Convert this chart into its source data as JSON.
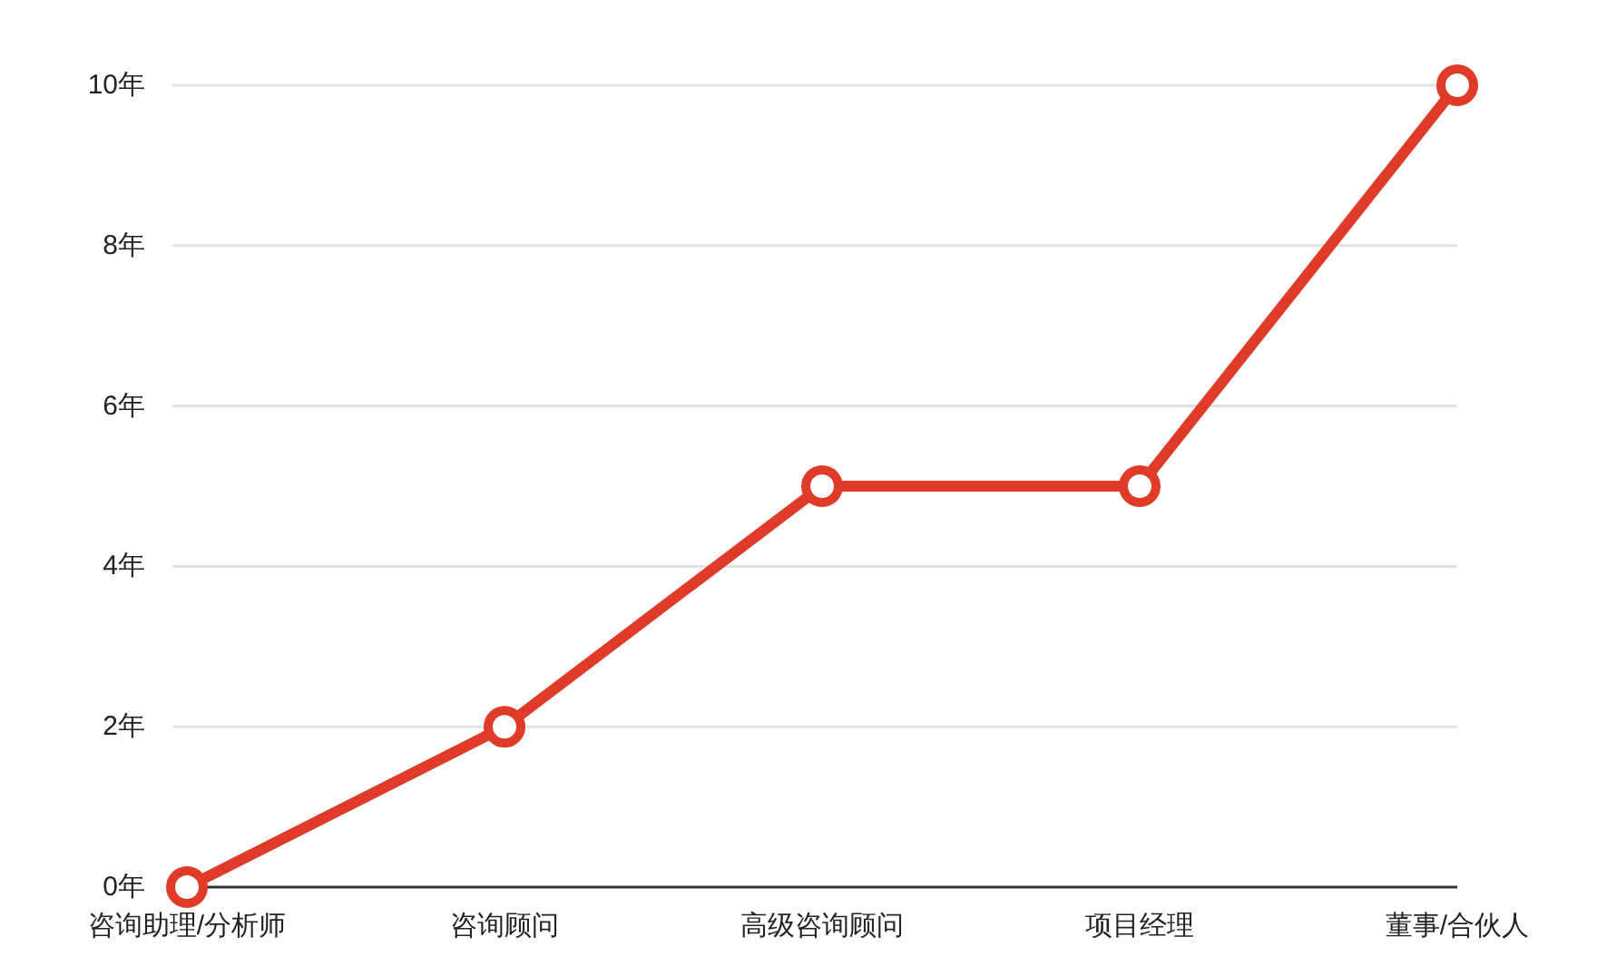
{
  "chart_data": {
    "type": "line",
    "categories": [
      "咨询助理/分析师",
      "咨询顾问",
      "高级咨询顾问",
      "项目经理",
      "董事/合伙人"
    ],
    "series": [
      {
        "color": "#e03a28",
        "values": [
          0,
          2,
          5,
          5,
          10
        ]
      }
    ],
    "ylim": [
      0,
      10
    ],
    "yticks": [
      {
        "value": 0,
        "label": "0年"
      },
      {
        "value": 2,
        "label": "2年"
      },
      {
        "value": 4,
        "label": "4年"
      },
      {
        "value": 6,
        "label": "6年"
      },
      {
        "value": 8,
        "label": "8年"
      },
      {
        "value": 10,
        "label": "10年"
      }
    ],
    "grid": "y",
    "marker": "circle",
    "line_style": "solid"
  }
}
